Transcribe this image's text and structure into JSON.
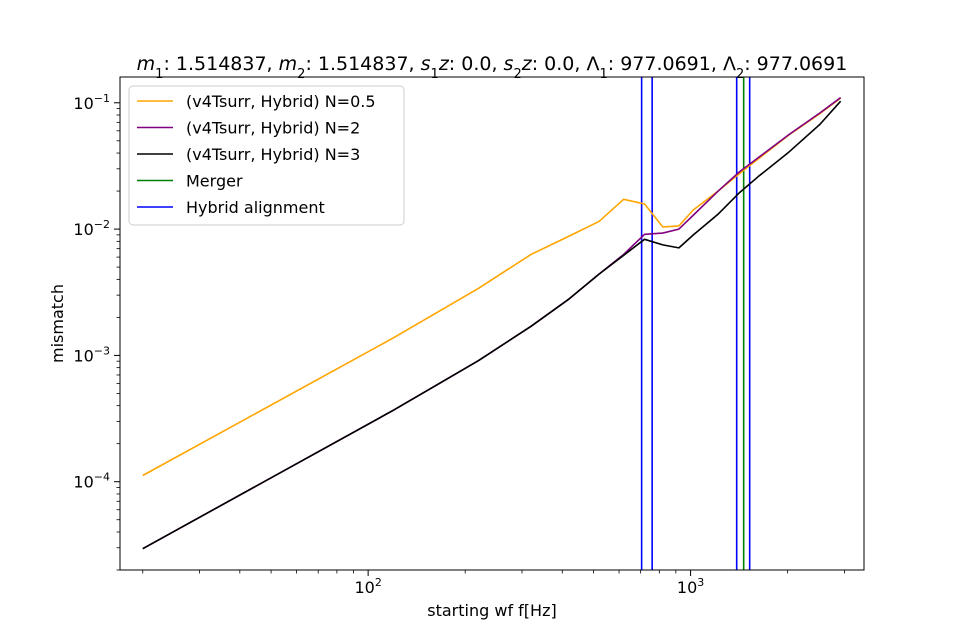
{
  "chart_data": {
    "type": "line",
    "title_parts": [
      {
        "text": "m",
        "italic": true
      },
      {
        "text": "1",
        "sub": true
      },
      {
        "text": ": 1.514837, "
      },
      {
        "text": "m",
        "italic": true
      },
      {
        "text": "2",
        "sub": true
      },
      {
        "text": ": 1.514837, "
      },
      {
        "text": "s",
        "italic": true
      },
      {
        "text": "1",
        "sub": true
      },
      {
        "text": "z",
        "italic": true
      },
      {
        "text": ": 0.0, "
      },
      {
        "text": "s",
        "italic": true
      },
      {
        "text": "2",
        "sub": true
      },
      {
        "text": "z",
        "italic": true
      },
      {
        "text": ": 0.0, "
      },
      {
        "text": "Λ"
      },
      {
        "text": "1",
        "sub": true
      },
      {
        "text": ": 977.0691, "
      },
      {
        "text": "Λ"
      },
      {
        "text": "2",
        "sub": true
      },
      {
        "text": ": 977.0691"
      }
    ],
    "xlabel": "starting wf f[Hz]",
    "ylabel": "mismatch",
    "xscale": "log",
    "yscale": "log",
    "xlim": [
      17,
      3450
    ],
    "ylim": [
      2e-05,
      0.16
    ],
    "x_ticks": [
      {
        "value": 100,
        "label": "10",
        "exp": "2"
      },
      {
        "value": 1000,
        "label": "10",
        "exp": "3"
      }
    ],
    "y_ticks": [
      {
        "value": 0.0001,
        "label": "10",
        "exp": "−4"
      },
      {
        "value": 0.001,
        "label": "10",
        "exp": "−3"
      },
      {
        "value": 0.01,
        "label": "10",
        "exp": "−2"
      },
      {
        "value": 0.1,
        "label": "10",
        "exp": "−1"
      }
    ],
    "legend_position": "upper-left",
    "series": [
      {
        "name": "(v4Tsurr, Hybrid) N=0.5",
        "color": "#ffa500",
        "points": [
          [
            20,
            0.000112
          ],
          [
            120,
            0.00138
          ],
          [
            220,
            0.0034
          ],
          [
            320,
            0.0063
          ],
          [
            420,
            0.0088
          ],
          [
            520,
            0.0115
          ],
          [
            620,
            0.0172
          ],
          [
            720,
            0.0158
          ],
          [
            820,
            0.0104
          ],
          [
            920,
            0.0106
          ],
          [
            1020,
            0.0142
          ],
          [
            1220,
            0.0201
          ],
          [
            1420,
            0.0276
          ],
          [
            1620,
            0.0359
          ],
          [
            2020,
            0.0557
          ],
          [
            2520,
            0.0822
          ],
          [
            2920,
            0.109
          ]
        ]
      },
      {
        "name": "(v4Tsurr, Hybrid) N=2",
        "color": "#800080",
        "points": [
          [
            20,
            2.95e-05
          ],
          [
            120,
            0.000369
          ],
          [
            220,
            0.00091
          ],
          [
            320,
            0.0017
          ],
          [
            420,
            0.0028
          ],
          [
            520,
            0.0044
          ],
          [
            620,
            0.0063
          ],
          [
            720,
            0.0091
          ],
          [
            820,
            0.0093
          ],
          [
            920,
            0.01
          ],
          [
            1020,
            0.0129
          ],
          [
            1220,
            0.0201
          ],
          [
            1420,
            0.0285
          ],
          [
            1620,
            0.0367
          ],
          [
            2020,
            0.0561
          ],
          [
            2520,
            0.0832
          ],
          [
            2920,
            0.11
          ]
        ]
      },
      {
        "name": "(v4Tsurr, Hybrid) N=3",
        "color": "#000000",
        "points": [
          [
            20,
            2.95e-05
          ],
          [
            120,
            0.000369
          ],
          [
            220,
            0.00091
          ],
          [
            320,
            0.0017
          ],
          [
            420,
            0.0028
          ],
          [
            520,
            0.0044
          ],
          [
            620,
            0.0062
          ],
          [
            720,
            0.0083
          ],
          [
            820,
            0.0075
          ],
          [
            920,
            0.0071
          ],
          [
            1020,
            0.009
          ],
          [
            1220,
            0.0132
          ],
          [
            1420,
            0.0195
          ],
          [
            1620,
            0.026
          ],
          [
            2020,
            0.0408
          ],
          [
            2520,
            0.0676
          ],
          [
            2920,
            0.103
          ]
        ]
      }
    ],
    "vlines": [
      {
        "name": "Merger",
        "color": "#008000",
        "x": [
          1461
        ]
      },
      {
        "name": "Hybrid alignment",
        "color": "#0000ff",
        "x": [
          705,
          760,
          1390,
          1525
        ]
      }
    ],
    "legend": [
      {
        "name": "(v4Tsurr, Hybrid) N=0.5",
        "color": "#ffa500"
      },
      {
        "name": "(v4Tsurr, Hybrid) N=2",
        "color": "#800080"
      },
      {
        "name": "(v4Tsurr, Hybrid) N=3",
        "color": "#000000"
      },
      {
        "name": "Merger",
        "color": "#008000"
      },
      {
        "name": "Hybrid alignment",
        "color": "#0000ff"
      }
    ]
  }
}
